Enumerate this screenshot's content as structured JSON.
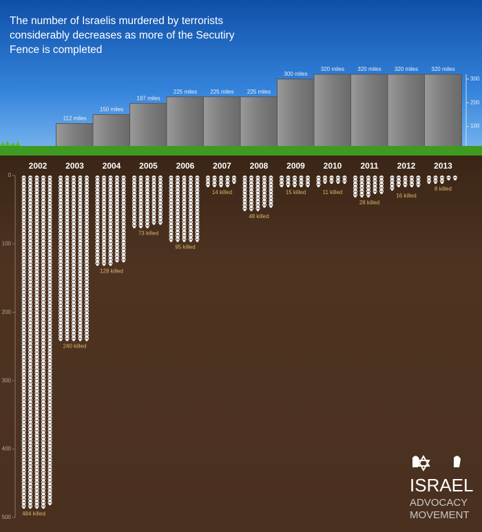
{
  "title": "The number of Israelis murdered by terrorists considerably decreases as more of the Secutiry Fence is completed",
  "logo": [
    "ISRAEL",
    "ADVOCACY",
    "MOVEMENT"
  ],
  "chart_data": [
    {
      "type": "bar",
      "values": [
        null,
        112,
        150,
        197,
        225,
        225,
        225,
        300,
        320,
        320,
        320,
        320
      ],
      "value_labels": [
        null,
        "112 miles",
        "150 miles",
        "197 miles",
        "225 miles",
        "225 miles",
        "225 miles",
        "300 miles",
        "320 miles",
        "320 miles",
        "320 miles",
        "320 miles"
      ],
      "color": "#8a8a8a",
      "ylim": [
        0,
        320
      ],
      "yticks": [
        100,
        200,
        300
      ]
    },
    {
      "type": "pictograph",
      "categories": [
        "2002",
        "2003",
        "2004",
        "2005",
        "2006",
        "2007",
        "2008",
        "2009",
        "2010",
        "2011",
        "2012",
        "2013"
      ],
      "values": [
        484,
        240,
        128,
        73,
        95,
        14,
        48,
        15,
        11,
        28,
        16,
        8
      ],
      "value_labels": [
        "484 killed",
        "240 killed",
        "128 killed",
        "73 killed",
        "95 killed",
        "14 killed",
        "48 killed",
        "15 killed",
        "11 killed",
        "28 killed",
        "16 killed",
        "8 killed"
      ],
      "color": "#ffffff",
      "ylim": [
        0,
        500
      ],
      "yticks": [
        0,
        100,
        200,
        300,
        400,
        500
      ]
    }
  ]
}
